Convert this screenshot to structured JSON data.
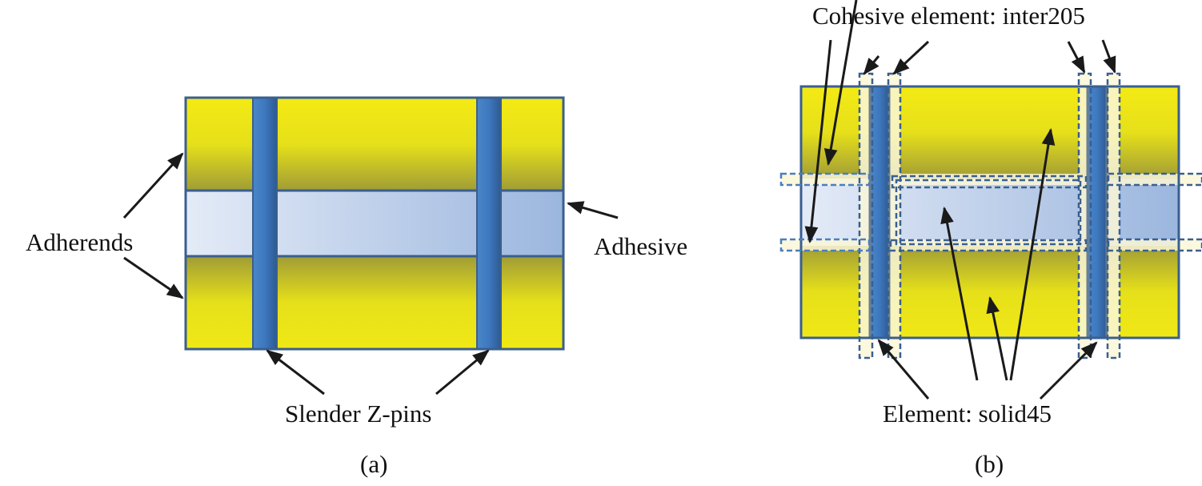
{
  "panel_a": {
    "caption": "(a)",
    "labels": {
      "adherends": "Adherends",
      "adhesive": "Adhesive",
      "zpins": "Slender Z-pins"
    }
  },
  "panel_b": {
    "caption": "(b)",
    "labels": {
      "cohesive": "Cohesive element: inter205",
      "solid": "Element: solid45"
    }
  },
  "colors": {
    "adherend": "#f2e816",
    "adherend_dark": "#a09c36",
    "adhesive_light": "#e4ebf7",
    "adhesive_dark": "#9bb6de",
    "pin": "#3e78bf",
    "outline": "#3a5f8f",
    "cohesive_fill": "#fbf7d8"
  }
}
